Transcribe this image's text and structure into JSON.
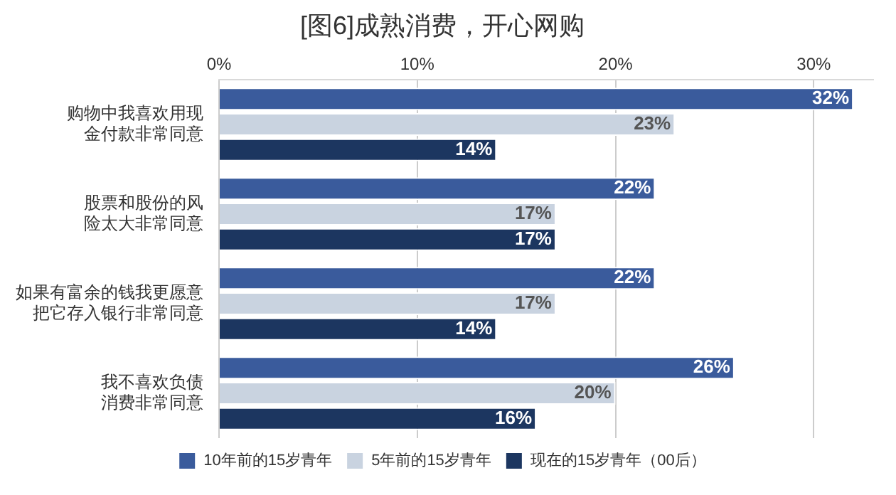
{
  "chart_data": {
    "type": "bar",
    "orientation": "horizontal",
    "title": "[图6]成熟消费，开心网购",
    "categories": [
      "购物中我喜欢用现金付款非常同意",
      "股票和股份的风险太大非常同意",
      "如果有富余的钱我更愿意把它存入银行非常同意",
      "我不喜欢负债消费非常同意"
    ],
    "series": [
      {
        "name": "10年前的15岁青年",
        "color": "#3a5b9c",
        "values": [
          32,
          22,
          22,
          26
        ],
        "value_labels": [
          "32%",
          "22%",
          "22%",
          "26%"
        ]
      },
      {
        "name": "5年前的15岁青年",
        "color": "#c9d3e0",
        "values": [
          23,
          17,
          17,
          20
        ],
        "value_labels": [
          "23%",
          "17%",
          "17%",
          "20%"
        ]
      },
      {
        "name": "现在的15岁青年（00后）",
        "color": "#1c3660",
        "values": [
          14,
          17,
          14,
          16
        ],
        "value_labels": [
          "14%",
          "17%",
          "14%",
          "16%"
        ]
      }
    ],
    "xlim": [
      0,
      33
    ],
    "xticks": [
      {
        "value": 0,
        "label": "0%"
      },
      {
        "value": 10,
        "label": "10%"
      },
      {
        "value": 20,
        "label": "20%"
      },
      {
        "value": 30,
        "label": "30%"
      }
    ],
    "grid": "x",
    "legend": "bottom"
  }
}
